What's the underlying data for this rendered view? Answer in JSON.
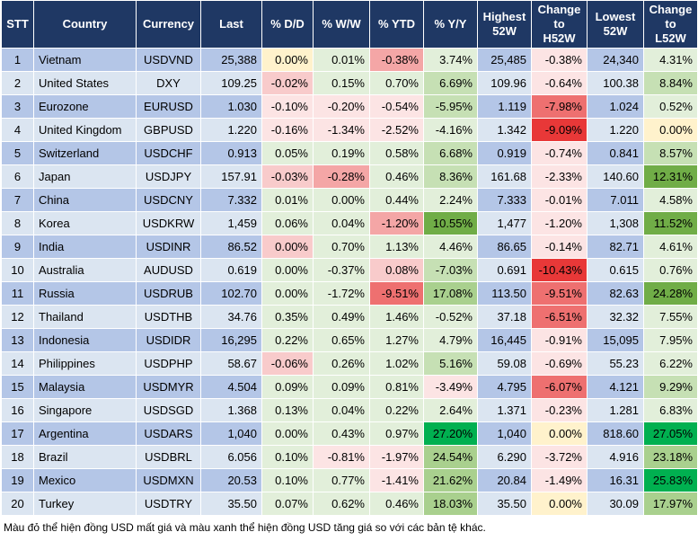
{
  "table": {
    "headers": [
      "STT",
      "Country",
      "Currency",
      "Last",
      "% D/D",
      "% W/W",
      "% YTD",
      "% Y/Y",
      "Highest\n52W",
      "Change\nto\nH52W",
      "Lowest\n52W",
      "Change\nto\nL52W"
    ],
    "rows": [
      [
        "1",
        "Vietnam",
        "USDVND",
        "25,388",
        "0.00%",
        "0.01%",
        "-0.38%",
        "3.74%",
        "25,485",
        "-0.38%",
        "24,340",
        "4.31%"
      ],
      [
        "2",
        "United States",
        "DXY",
        "109.25",
        "-0.02%",
        "0.15%",
        "0.70%",
        "6.69%",
        "109.96",
        "-0.64%",
        "100.38",
        "8.84%"
      ],
      [
        "3",
        "Eurozone",
        "EURUSD",
        "1.030",
        "-0.10%",
        "-0.20%",
        "-0.54%",
        "-5.95%",
        "1.119",
        "-7.98%",
        "1.024",
        "0.52%"
      ],
      [
        "4",
        "United Kingdom",
        "GBPUSD",
        "1.220",
        "-0.16%",
        "-1.34%",
        "-2.52%",
        "-4.16%",
        "1.342",
        "-9.09%",
        "1.220",
        "0.00%"
      ],
      [
        "5",
        "Switzerland",
        "USDCHF",
        "0.913",
        "0.05%",
        "0.19%",
        "0.58%",
        "6.68%",
        "0.919",
        "-0.74%",
        "0.841",
        "8.57%"
      ],
      [
        "6",
        "Japan",
        "USDJPY",
        "157.91",
        "-0.03%",
        "-0.28%",
        "0.46%",
        "8.36%",
        "161.68",
        "-2.33%",
        "140.60",
        "12.31%"
      ],
      [
        "7",
        "China",
        "USDCNY",
        "7.332",
        "0.01%",
        "0.00%",
        "0.44%",
        "2.24%",
        "7.333",
        "-0.01%",
        "7.011",
        "4.58%"
      ],
      [
        "8",
        "Korea",
        "USDKRW",
        "1,459",
        "0.06%",
        "0.04%",
        "-1.20%",
        "10.55%",
        "1,477",
        "-1.20%",
        "1,308",
        "11.52%"
      ],
      [
        "9",
        "India",
        "USDINR",
        "86.52",
        "0.00%",
        "0.70%",
        "1.13%",
        "4.46%",
        "86.65",
        "-0.14%",
        "82.71",
        "4.61%"
      ],
      [
        "10",
        "Australia",
        "AUDUSD",
        "0.619",
        "0.00%",
        "-0.37%",
        "0.08%",
        "-7.03%",
        "0.691",
        "-10.43%",
        "0.615",
        "0.76%"
      ],
      [
        "11",
        "Russia",
        "USDRUB",
        "102.70",
        "0.00%",
        "-1.72%",
        "-9.51%",
        "17.08%",
        "113.50",
        "-9.51%",
        "82.63",
        "24.28%"
      ],
      [
        "12",
        "Thailand",
        "USDTHB",
        "34.76",
        "0.35%",
        "0.49%",
        "1.46%",
        "-0.52%",
        "37.18",
        "-6.51%",
        "32.32",
        "7.55%"
      ],
      [
        "13",
        "Indonesia",
        "USDIDR",
        "16,295",
        "0.22%",
        "0.65%",
        "1.27%",
        "4.79%",
        "16,445",
        "-0.91%",
        "15,095",
        "7.95%"
      ],
      [
        "14",
        "Philippines",
        "USDPHP",
        "58.67",
        "-0.06%",
        "0.26%",
        "1.02%",
        "5.16%",
        "59.08",
        "-0.69%",
        "55.23",
        "6.22%"
      ],
      [
        "15",
        "Malaysia",
        "USDMYR",
        "4.504",
        "0.09%",
        "0.09%",
        "0.81%",
        "-3.49%",
        "4.795",
        "-6.07%",
        "4.121",
        "9.29%"
      ],
      [
        "16",
        "Singapore",
        "USDSGD",
        "1.368",
        "0.13%",
        "0.04%",
        "0.22%",
        "2.64%",
        "1.371",
        "-0.23%",
        "1.281",
        "6.83%"
      ],
      [
        "17",
        "Argentina",
        "USDARS",
        "1,040",
        "0.00%",
        "0.43%",
        "0.97%",
        "27.20%",
        "1,040",
        "0.00%",
        "818.60",
        "27.05%"
      ],
      [
        "18",
        "Brazil",
        "USDBRL",
        "6.056",
        "0.10%",
        "-0.81%",
        "-1.97%",
        "24.54%",
        "6.290",
        "-3.72%",
        "4.916",
        "23.18%"
      ],
      [
        "19",
        "Mexico",
        "USDMXN",
        "20.53",
        "0.10%",
        "0.77%",
        "-1.41%",
        "21.62%",
        "20.84",
        "-1.49%",
        "16.31",
        "25.83%"
      ],
      [
        "20",
        "Turkey",
        "USDTRY",
        "35.50",
        "0.07%",
        "0.62%",
        "0.46%",
        "18.03%",
        "35.50",
        "0.00%",
        "30.09",
        "17.97%"
      ]
    ],
    "colored_columns": [
      4,
      5,
      6,
      7,
      9,
      11
    ],
    "cell_colors": [
      [
        "#fff2cc",
        "#e2efda",
        "#f4a6a6",
        "#e2efda",
        "#fce4e4",
        "#e2efda"
      ],
      [
        "#f8cbcb",
        "#e2efda",
        "#e2efda",
        "#c6e0b4",
        "#fce4e4",
        "#c6e0b4"
      ],
      [
        "#fce4e4",
        "#fce4e4",
        "#fce4e4",
        "#c6e0b4",
        "#ee7070",
        "#e2efda"
      ],
      [
        "#fce4e4",
        "#fce4e4",
        "#fce4e4",
        "#e2efda",
        "#e83838",
        "#fff2cc"
      ],
      [
        "#e2efda",
        "#e2efda",
        "#e2efda",
        "#c6e0b4",
        "#fce4e4",
        "#c6e0b4"
      ],
      [
        "#f8cbcb",
        "#f4a6a6",
        "#e2efda",
        "#c6e0b4",
        "#fce4e4",
        "#70ad47"
      ],
      [
        "#e2efda",
        "#e2efda",
        "#e2efda",
        "#e2efda",
        "#fce4e4",
        "#e2efda"
      ],
      [
        "#e2efda",
        "#e2efda",
        "#f4a6a6",
        "#70ad47",
        "#fce4e4",
        "#70ad47"
      ],
      [
        "#f8cbcb",
        "#e2efda",
        "#e2efda",
        "#e2efda",
        "#fce4e4",
        "#e2efda"
      ],
      [
        "#e2efda",
        "#e2efda",
        "#f8cbcb",
        "#c6e0b4",
        "#e83838",
        "#e2efda"
      ],
      [
        "#e2efda",
        "#e2efda",
        "#ee7070",
        "#a9d08e",
        "#ee7070",
        "#70ad47"
      ],
      [
        "#e2efda",
        "#e2efda",
        "#e2efda",
        "#e2efda",
        "#ee7070",
        "#e2efda"
      ],
      [
        "#e2efda",
        "#e2efda",
        "#e2efda",
        "#e2efda",
        "#fce4e4",
        "#e2efda"
      ],
      [
        "#f8cbcb",
        "#e2efda",
        "#e2efda",
        "#c6e0b4",
        "#fce4e4",
        "#e2efda"
      ],
      [
        "#e2efda",
        "#e2efda",
        "#e2efda",
        "#fce4e4",
        "#ee7070",
        "#c6e0b4"
      ],
      [
        "#e2efda",
        "#e2efda",
        "#e2efda",
        "#e2efda",
        "#fce4e4",
        "#e2efda"
      ],
      [
        "#e2efda",
        "#e2efda",
        "#e2efda",
        "#00b050",
        "#fff2cc",
        "#00b050"
      ],
      [
        "#e2efda",
        "#fce4e4",
        "#fce4e4",
        "#a9d08e",
        "#fce4e4",
        "#a9d08e"
      ],
      [
        "#e2efda",
        "#e2efda",
        "#fce4e4",
        "#a9d08e",
        "#fce4e4",
        "#00b050"
      ],
      [
        "#e2efda",
        "#e2efda",
        "#e2efda",
        "#a9d08e",
        "#fff2cc",
        "#a9d08e"
      ]
    ],
    "stripe_colors": [
      "#b4c6e7",
      "#dbe5f1"
    ],
    "header_color": "#1f3864"
  },
  "note": "Màu đỏ thể hiện đồng USD mất giá và màu xanh thể hiện đồng USD tăng giá so với các bản tệ khác."
}
